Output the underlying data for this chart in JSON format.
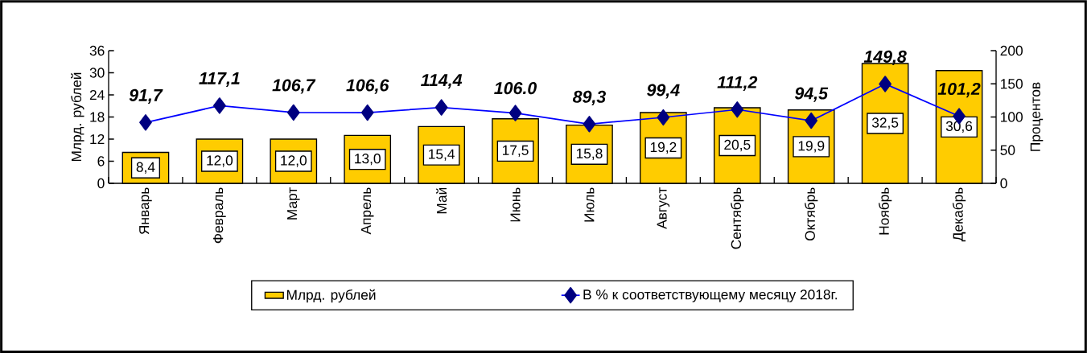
{
  "chart_data": {
    "type": "bar",
    "categories": [
      "Январь",
      "Февраль",
      "Март",
      "Апрель",
      "Май",
      "Июнь",
      "Июль",
      "Август",
      "Сентябрь",
      "Октябрь",
      "Ноябрь",
      "Декабрь"
    ],
    "series": [
      {
        "name": "Млрд. рублей",
        "color": "#ffcc00",
        "values": [
          8.4,
          12.0,
          12.0,
          13.0,
          15.4,
          17.5,
          15.8,
          19.2,
          20.5,
          19.9,
          32.5,
          30.6
        ],
        "value_labels": [
          "8,4",
          "12,0",
          "12,0",
          "13,0",
          "15,4",
          "17,5",
          "15,8",
          "19,2",
          "20,5",
          "19,9",
          "32,5",
          "30,6"
        ]
      },
      {
        "name": "В % к соответствующему месяцу 2018г.",
        "type": "line",
        "axis": "y2",
        "color": "#0000ff",
        "values": [
          91.7,
          117.1,
          106.7,
          106.6,
          114.4,
          106.0,
          89.3,
          99.4,
          111.2,
          94.5,
          149.8,
          101.2
        ],
        "value_labels": [
          "91,7",
          "117,1",
          "106,7",
          "106,6",
          "114,4",
          "106.0",
          "89,3",
          "99,4",
          "111,2",
          "94,5",
          "149,8",
          "101,2"
        ]
      }
    ],
    "ylabel": "Млрд. рублей",
    "y2label": "Процентов",
    "ylim": [
      0,
      36
    ],
    "yticks": [
      0,
      6,
      12,
      18,
      24,
      30,
      36
    ],
    "y2lim": [
      0,
      200
    ],
    "y2ticks": [
      0,
      50,
      100,
      150,
      200
    ],
    "marker": "diamond",
    "legend": "bottom"
  }
}
